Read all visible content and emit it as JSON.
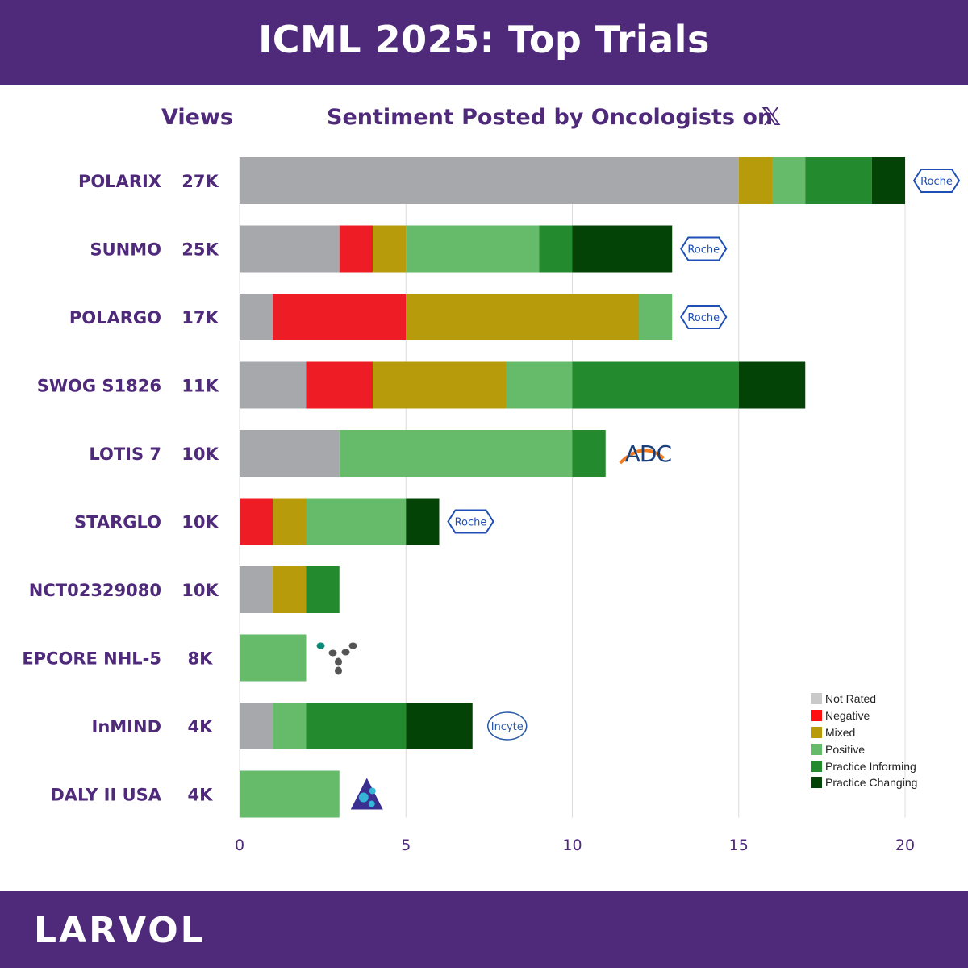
{
  "header": {
    "title": "ICML 2025: Top Trials"
  },
  "columns": {
    "views": "Views",
    "sentiment": "Sentiment Posted by Oncologists on",
    "x_symbol": "𝕏"
  },
  "footer": {
    "brand": "LARVOL"
  },
  "colors": {
    "header_band": "#4f2a7a",
    "Not Rated": "#a7a8ab",
    "Negative": "#ee1c25",
    "Mixed": "#b89b0a",
    "Positive": "#66bb6a",
    "Practice Informing": "#238a2e",
    "Practice Changing": "#034406"
  },
  "chart_data": {
    "type": "bar",
    "orientation": "horizontal",
    "stacked": true,
    "categories": [
      "POLARIX",
      "SUNMO",
      "POLARGO",
      "SWOG S1826",
      "LOTIS 7",
      "STARGLO",
      "NCT02329080",
      "EPCORE NHL-5",
      "InMIND",
      "DALY II USA"
    ],
    "views": [
      "27K",
      "25K",
      "17K",
      "11K",
      "10K",
      "10K",
      "10K",
      "8K",
      "4K",
      "4K"
    ],
    "sponsor_logos": [
      "roche-logo",
      "roche-logo",
      "roche-logo",
      "",
      "adc-therapeutics-logo",
      "roche-logo",
      "",
      "genmab-logo",
      "incyte-logo",
      "miltenyi-logo"
    ],
    "sponsor_logo_text": [
      "Roche",
      "Roche",
      "Roche",
      "",
      "ADC",
      "Roche",
      "",
      "",
      "Incyte",
      ""
    ],
    "series": [
      {
        "name": "Not Rated",
        "values": [
          15,
          3,
          1,
          2,
          3,
          0,
          1,
          0,
          1,
          0
        ]
      },
      {
        "name": "Negative",
        "values": [
          0,
          1,
          4,
          2,
          0,
          1,
          0,
          0,
          0,
          0
        ]
      },
      {
        "name": "Mixed",
        "values": [
          1,
          1,
          7,
          4,
          0,
          1,
          1,
          0,
          0,
          0
        ]
      },
      {
        "name": "Positive",
        "values": [
          1,
          4,
          1,
          2,
          7,
          3,
          0,
          2,
          1,
          3
        ]
      },
      {
        "name": "Practice Informing",
        "values": [
          2,
          1,
          0,
          5,
          1,
          0,
          1,
          0,
          3,
          0
        ]
      },
      {
        "name": "Practice Changing",
        "values": [
          1,
          3,
          0,
          2,
          0,
          1,
          0,
          0,
          2,
          0
        ]
      }
    ],
    "xlim": [
      0,
      20
    ],
    "xticks": [
      "0",
      "5",
      "10",
      "15",
      "20"
    ],
    "grid": true,
    "legend_position": "bottom-right"
  }
}
